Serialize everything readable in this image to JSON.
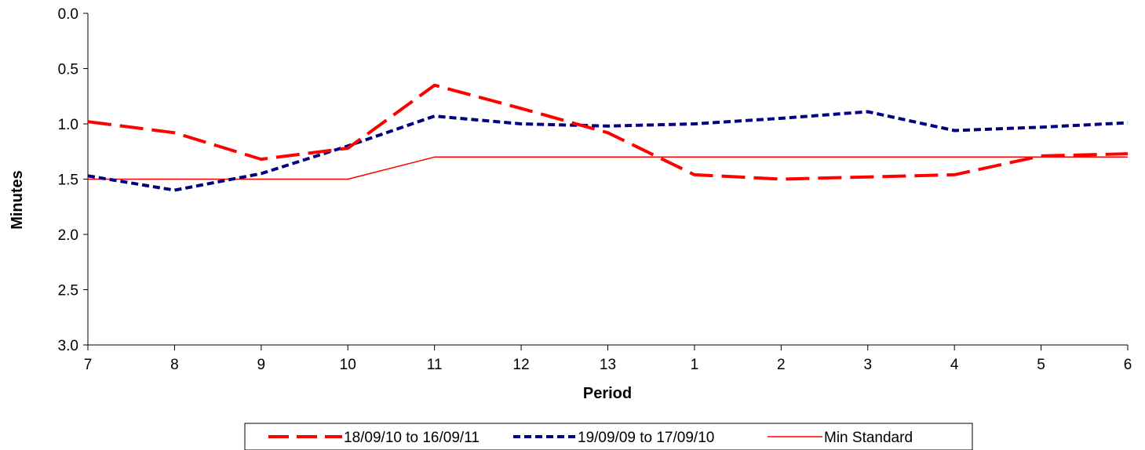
{
  "chart_data": {
    "type": "line",
    "title": "",
    "xlabel": "Period",
    "ylabel": "Minutes",
    "categories": [
      "7",
      "8",
      "9",
      "10",
      "11",
      "12",
      "13",
      "1",
      "2",
      "3",
      "4",
      "5",
      "6"
    ],
    "ylim": [
      0,
      3
    ],
    "y_inverted": true,
    "y_ticks": [
      "0.0",
      "0.5",
      "1.0",
      "1.5",
      "2.0",
      "2.5",
      "3.0"
    ],
    "grid": false,
    "legend_position": "bottom",
    "series": [
      {
        "name": "18/09/10 to 16/09/11",
        "color": "#ff0000",
        "style": "long-dash",
        "values": [
          0.98,
          1.08,
          1.32,
          1.22,
          0.65,
          0.86,
          1.08,
          1.46,
          1.5,
          1.48,
          1.46,
          1.29,
          1.27
        ]
      },
      {
        "name": "19/09/09 to 17/09/10",
        "color": "#000080",
        "style": "short-dash",
        "values": [
          1.47,
          1.6,
          1.45,
          1.2,
          0.93,
          1.0,
          1.02,
          1.0,
          0.95,
          0.89,
          1.06,
          1.03,
          0.99
        ]
      },
      {
        "name": "Min Standard",
        "color": "#ff0000",
        "style": "solid",
        "values": [
          1.5,
          1.5,
          1.5,
          1.5,
          1.3,
          1.3,
          1.3,
          1.3,
          1.3,
          1.3,
          1.3,
          1.3,
          1.3
        ]
      }
    ]
  }
}
